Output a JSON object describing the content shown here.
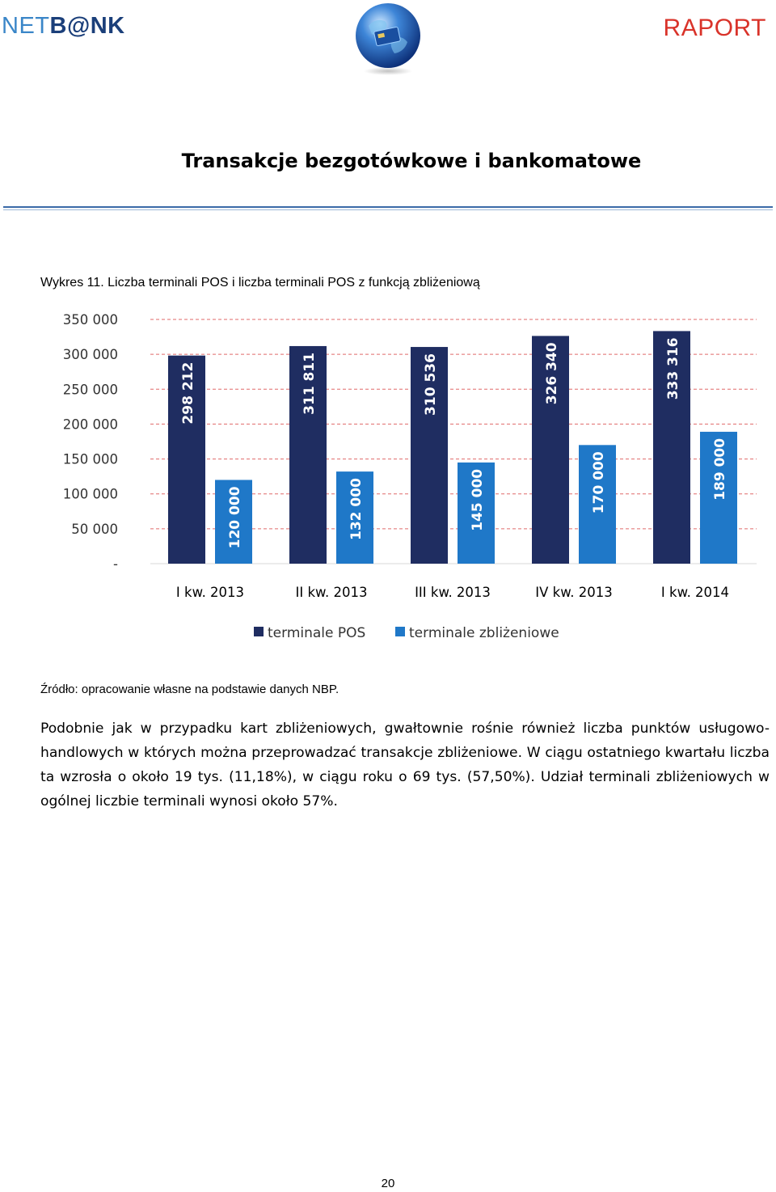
{
  "header": {
    "logo_left_prefix": "NET",
    "logo_left_suffix": "B@NK",
    "logo_right": "RAPORT"
  },
  "document": {
    "title": "Transakcje bezgotówkowe i bankomatowe",
    "figure_caption": "Wykres 11. Liczba terminali POS i liczba terminali POS z funkcją zbliżeniową",
    "source": "Źródło: opracowanie własne na podstawie danych NBP.",
    "paragraph": "Podobnie jak w przypadku kart zbliżeniowych, gwałtownie rośnie również liczba punktów usługowo-handlowych w których można przeprowadzać transakcje zbliżeniowe. W ciągu ostatniego kwartału liczba ta wzrosła o około 19 tys. (11,18%), w ciągu roku o 69 tys. (57,50%). Udział terminali zbliżeniowych w ogólnej liczbie terminali wynosi około 57%.",
    "page_number": "20"
  },
  "colors": {
    "pos": "#1f2d61",
    "contactless": "#1f78c8",
    "gridline": "#e06a6a"
  },
  "chart_data": {
    "type": "bar",
    "categories": [
      "I kw. 2013",
      "II kw. 2013",
      "III kw. 2013",
      "IV kw. 2013",
      "I kw. 2014"
    ],
    "series": [
      {
        "name": "terminale POS",
        "values": [
          298212,
          311811,
          310536,
          326340,
          333316
        ],
        "labels": [
          "298 212",
          "311 811",
          "310 536",
          "326 340",
          "333 316"
        ]
      },
      {
        "name": "terminale zbliżeniowe",
        "values": [
          120000,
          132000,
          145000,
          170000,
          189000
        ],
        "labels": [
          "120 000",
          "132 000",
          "145 000",
          "170 000",
          "189 000"
        ]
      }
    ],
    "ylim": [
      0,
      350000
    ],
    "yticks": [
      0,
      50000,
      100000,
      150000,
      200000,
      250000,
      300000,
      350000
    ],
    "ytick_labels": [
      "-",
      "50 000",
      "100 000",
      "150 000",
      "200 000",
      "250 000",
      "300 000",
      "350 000"
    ],
    "grid": true,
    "legend": "bottom",
    "data_labels": "inside-rotated"
  }
}
